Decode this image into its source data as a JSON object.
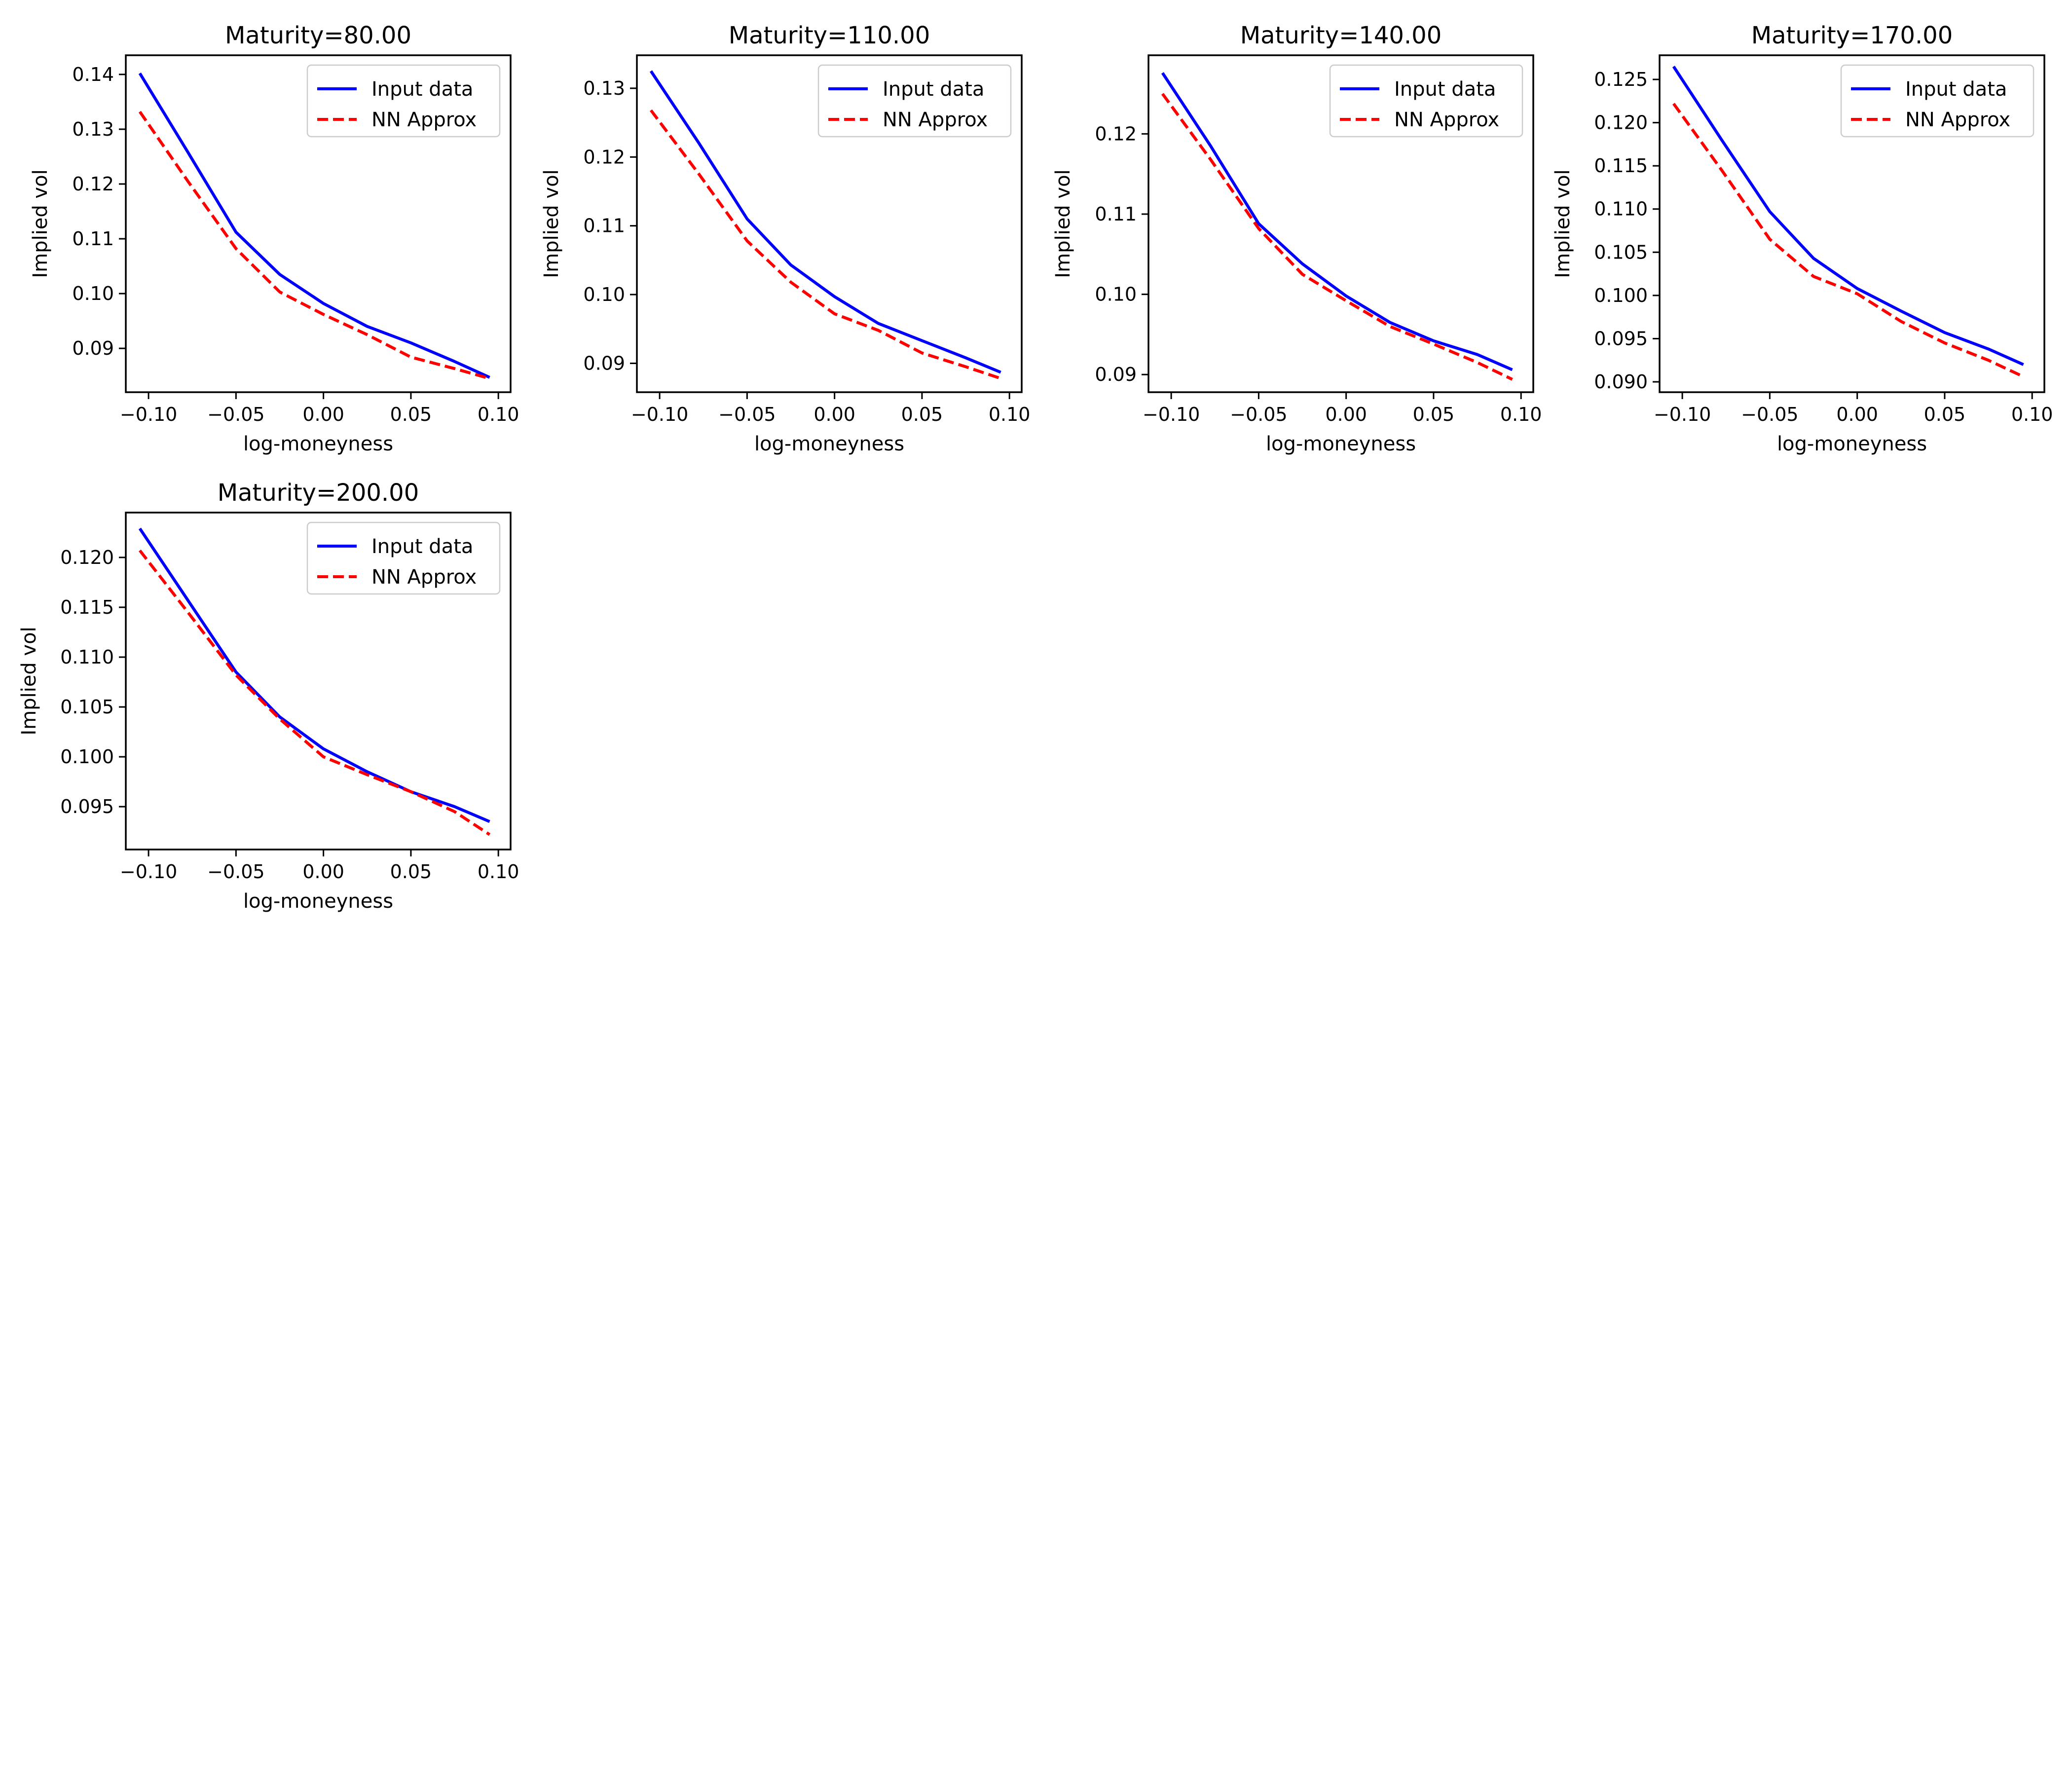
{
  "figure": {
    "background": "#ffffff"
  },
  "legend": {
    "location": "upper right",
    "entries": [
      {
        "label": "Input data",
        "color": "#0000ff",
        "style": "solid"
      },
      {
        "label": "NN Approx",
        "color": "#ff0000",
        "style": "dashed"
      }
    ]
  },
  "chart_data": [
    {
      "type": "line",
      "title": "Maturity=80.00",
      "xlabel": "log-moneyness",
      "ylabel": "Implied vol",
      "xlim": [
        -0.113,
        0.107
      ],
      "ylim": [
        0.082,
        0.1435
      ],
      "xticks": [
        -0.1,
        -0.05,
        0.0,
        0.05,
        0.1
      ],
      "xtick_labels": [
        "−0.10",
        "−0.05",
        "0.00",
        "0.05",
        "0.10"
      ],
      "yticks": [
        0.09,
        0.1,
        0.11,
        0.12,
        0.13,
        0.14
      ],
      "ytick_labels": [
        "0.09",
        "0.10",
        "0.11",
        "0.12",
        "0.13",
        "0.14"
      ],
      "grid": false,
      "legend": "top-right",
      "x": [
        -0.105,
        -0.0775,
        -0.05,
        -0.025,
        0.0,
        0.025,
        0.05,
        0.075,
        0.095
      ],
      "series": [
        {
          "name": "Input data",
          "color": "#0000ff",
          "style": "solid",
          "values": [
            0.1402,
            0.1258,
            0.1112,
            0.1035,
            0.0982,
            0.094,
            0.091,
            0.0876,
            0.0847
          ]
        },
        {
          "name": "NN Approx",
          "color": "#ff0000",
          "style": "dashed",
          "values": [
            0.1332,
            0.1205,
            0.1082,
            0.1003,
            0.0962,
            0.0925,
            0.0884,
            0.0863,
            0.0845
          ]
        }
      ]
    },
    {
      "type": "line",
      "title": "Maturity=110.00",
      "xlabel": "log-moneyness",
      "ylabel": "Implied vol",
      "xlim": [
        -0.113,
        0.107
      ],
      "ylim": [
        0.0858,
        0.1348
      ],
      "xticks": [
        -0.1,
        -0.05,
        0.0,
        0.05,
        0.1
      ],
      "xtick_labels": [
        "−0.10",
        "−0.05",
        "0.00",
        "0.05",
        "0.10"
      ],
      "yticks": [
        0.09,
        0.1,
        0.11,
        0.12,
        0.13
      ],
      "ytick_labels": [
        "0.09",
        "0.10",
        "0.11",
        "0.12",
        "0.13"
      ],
      "grid": false,
      "legend": "top-right",
      "x": [
        -0.105,
        -0.0775,
        -0.05,
        -0.025,
        0.0,
        0.025,
        0.05,
        0.075,
        0.095
      ],
      "series": [
        {
          "name": "Input data",
          "color": "#0000ff",
          "style": "solid",
          "values": [
            0.1325,
            0.122,
            0.111,
            0.1043,
            0.0997,
            0.0958,
            0.0933,
            0.0908,
            0.0887
          ]
        },
        {
          "name": "NN Approx",
          "color": "#ff0000",
          "style": "dashed",
          "values": [
            0.1268,
            0.1175,
            0.1078,
            0.1018,
            0.0972,
            0.0948,
            0.0915,
            0.0895,
            0.0878
          ]
        }
      ]
    },
    {
      "type": "line",
      "title": "Maturity=140.00",
      "xlabel": "log-moneyness",
      "ylabel": "Implied vol",
      "xlim": [
        -0.113,
        0.107
      ],
      "ylim": [
        0.0878,
        0.1298
      ],
      "xticks": [
        -0.1,
        -0.05,
        0.0,
        0.05,
        0.1
      ],
      "xtick_labels": [
        "−0.10",
        "−0.05",
        "0.00",
        "0.05",
        "0.10"
      ],
      "yticks": [
        0.09,
        0.1,
        0.11,
        0.12
      ],
      "ytick_labels": [
        "0.09",
        "0.10",
        "0.11",
        "0.12"
      ],
      "grid": false,
      "legend": "top-right",
      "x": [
        -0.105,
        -0.0775,
        -0.05,
        -0.025,
        0.0,
        0.025,
        0.05,
        0.075,
        0.095
      ],
      "series": [
        {
          "name": "Input data",
          "color": "#0000ff",
          "style": "solid",
          "values": [
            0.1276,
            0.1185,
            0.1088,
            0.1038,
            0.0998,
            0.0965,
            0.0942,
            0.0925,
            0.0906
          ]
        },
        {
          "name": "NN Approx",
          "color": "#ff0000",
          "style": "dashed",
          "values": [
            0.125,
            0.1168,
            0.1082,
            0.1025,
            0.0992,
            0.096,
            0.0938,
            0.0915,
            0.0894
          ]
        }
      ]
    },
    {
      "type": "line",
      "title": "Maturity=170.00",
      "xlabel": "log-moneyness",
      "ylabel": "Implied vol",
      "xlim": [
        -0.113,
        0.107
      ],
      "ylim": [
        0.0888,
        0.1278
      ],
      "xticks": [
        -0.1,
        -0.05,
        0.0,
        0.05,
        0.1
      ],
      "xtick_labels": [
        "−0.10",
        "−0.05",
        "0.00",
        "0.05",
        "0.10"
      ],
      "yticks": [
        0.09,
        0.095,
        0.1,
        0.105,
        0.11,
        0.115,
        0.12,
        0.125
      ],
      "ytick_labels": [
        "0.090",
        "0.095",
        "0.100",
        "0.105",
        "0.110",
        "0.115",
        "0.120",
        "0.125"
      ],
      "grid": false,
      "legend": "top-right",
      "x": [
        -0.105,
        -0.0775,
        -0.05,
        -0.025,
        0.0,
        0.025,
        0.05,
        0.075,
        0.095
      ],
      "series": [
        {
          "name": "Input data",
          "color": "#0000ff",
          "style": "solid",
          "values": [
            0.1265,
            0.118,
            0.1097,
            0.1043,
            0.1008,
            0.0982,
            0.0957,
            0.0938,
            0.092
          ]
        },
        {
          "name": "NN Approx",
          "color": "#ff0000",
          "style": "dashed",
          "values": [
            0.1222,
            0.1145,
            0.1065,
            0.1022,
            0.1002,
            0.097,
            0.0945,
            0.0925,
            0.0906
          ]
        }
      ]
    },
    {
      "type": "line",
      "title": "Maturity=200.00",
      "xlabel": "log-moneyness",
      "ylabel": "Implied vol",
      "xlim": [
        -0.113,
        0.107
      ],
      "ylim": [
        0.0907,
        0.1245
      ],
      "xticks": [
        -0.1,
        -0.05,
        0.0,
        0.05,
        0.1
      ],
      "xtick_labels": [
        "−0.10",
        "−0.05",
        "0.00",
        "0.05",
        "0.10"
      ],
      "yticks": [
        0.095,
        0.1,
        0.105,
        0.11,
        0.115,
        0.12
      ],
      "ytick_labels": [
        "0.095",
        "0.100",
        "0.105",
        "0.110",
        "0.115",
        "0.120"
      ],
      "grid": false,
      "legend": "top-right",
      "x": [
        -0.105,
        -0.0775,
        -0.05,
        -0.025,
        0.0,
        0.025,
        0.05,
        0.075,
        0.095
      ],
      "series": [
        {
          "name": "Input data",
          "color": "#0000ff",
          "style": "solid",
          "values": [
            0.1229,
            0.1157,
            0.1085,
            0.104,
            0.1008,
            0.0985,
            0.0965,
            0.095,
            0.0935
          ]
        },
        {
          "name": "NN Approx",
          "color": "#ff0000",
          "style": "dashed",
          "values": [
            0.1207,
            0.1145,
            0.1082,
            0.1038,
            0.1,
            0.0982,
            0.0965,
            0.0945,
            0.0922
          ]
        }
      ]
    }
  ]
}
